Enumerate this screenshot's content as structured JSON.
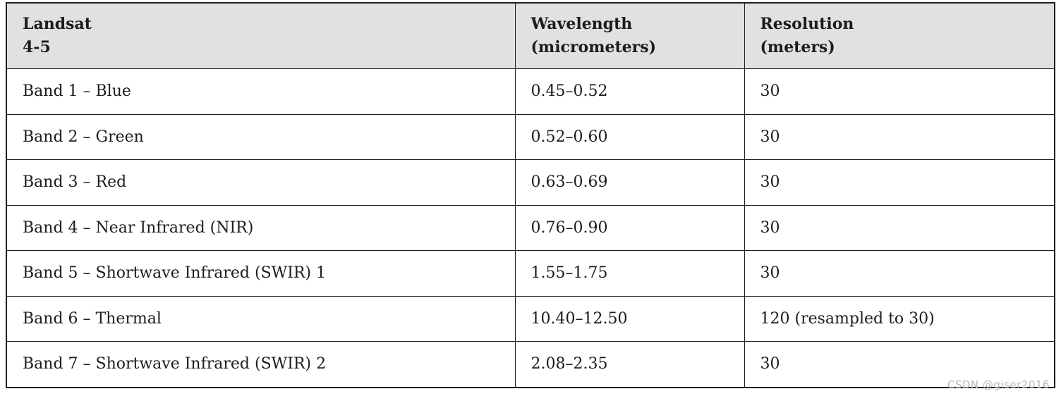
{
  "page": {
    "watermark": "CSDN @giser2016"
  },
  "colors": {
    "header_bg": "#e0e1e3",
    "border": "#1d1d1f",
    "text": "#1c1c1c",
    "watermark": "#b9b9b9"
  },
  "table": {
    "headers": [
      {
        "line1": "Landsat",
        "line2": "4-5"
      },
      {
        "line1": "Wavelength",
        "line2": "(micrometers)"
      },
      {
        "line1": "Resolution",
        "line2": "(meters)"
      }
    ],
    "rows": [
      {
        "band": "Band 1 – Blue",
        "wavelength": "0.45–0.52",
        "resolution": "30"
      },
      {
        "band": "Band 2 – Green",
        "wavelength": "0.52–0.60",
        "resolution": "30"
      },
      {
        "band": "Band 3 – Red",
        "wavelength": "0.63–0.69",
        "resolution": "30"
      },
      {
        "band": "Band 4 – Near Infrared (NIR)",
        "wavelength": "0.76–0.90",
        "resolution": "30"
      },
      {
        "band": "Band 5 – Shortwave Infrared (SWIR) 1",
        "wavelength": "1.55–1.75",
        "resolution": "30"
      },
      {
        "band": "Band 6 – Thermal",
        "wavelength": "10.40–12.50",
        "resolution": "120 (resampled to 30)"
      },
      {
        "band": "Band 7 – Shortwave Infrared (SWIR) 2",
        "wavelength": "2.08–2.35",
        "resolution": "30"
      }
    ]
  }
}
